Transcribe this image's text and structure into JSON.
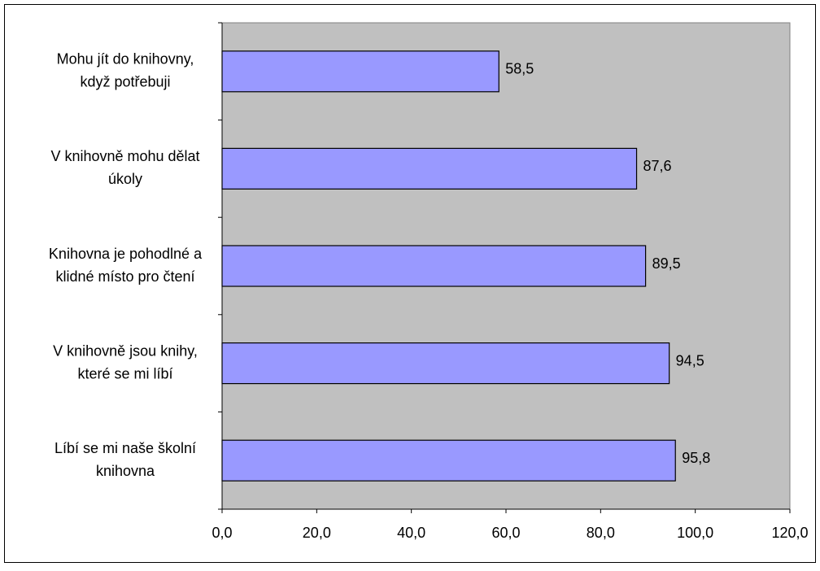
{
  "chart_data": {
    "type": "bar",
    "orientation": "horizontal",
    "categories": [
      [
        "Mohu jít do knihovny,",
        "když potřebuji"
      ],
      [
        "V knihovně mohu dělat",
        "úkoly"
      ],
      [
        "Knihovna je pohodlné a",
        "klidné místo pro čtení"
      ],
      [
        "V knihovně jsou knihy,",
        "které se mi líbí"
      ],
      [
        "Líbí se mi naše školní",
        "knihovna"
      ]
    ],
    "values": [
      58.5,
      87.6,
      89.5,
      94.5,
      95.8
    ],
    "data_labels": [
      "58,5",
      "87,6",
      "89,5",
      "94,5",
      "95,8"
    ],
    "xlim": [
      0,
      120
    ],
    "x_ticks": [
      0,
      20,
      40,
      60,
      80,
      100,
      120
    ],
    "x_tick_labels": [
      "0,0",
      "20,0",
      "40,0",
      "60,0",
      "80,0",
      "100,0",
      "120,0"
    ],
    "title": "",
    "xlabel": "",
    "ylabel": "",
    "grid": false,
    "legend": "none",
    "colors": {
      "bar_fill": "#9999ff",
      "bar_stroke": "#000000",
      "plot_background": "#c0c0c0",
      "chart_background": "#ffffff",
      "axis": "#000000"
    }
  }
}
